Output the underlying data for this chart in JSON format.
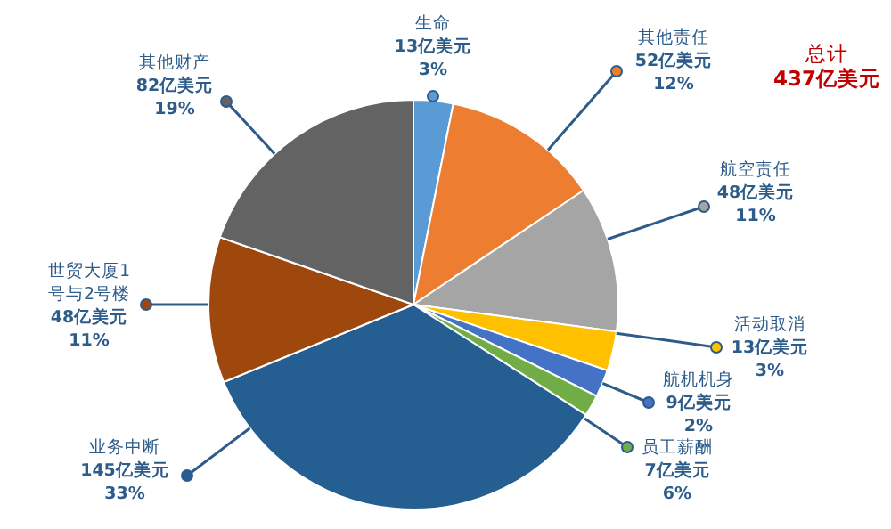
{
  "chart_data": {
    "type": "pie",
    "categories": [
      "生命",
      "其他责任",
      "航空责任",
      "活动取消",
      "航机机身",
      "员工薪酬",
      "业务中断",
      "世贸大厦1号与2号楼",
      "其他财产"
    ],
    "values": [
      13,
      52,
      48,
      13,
      9,
      7,
      145,
      48,
      82
    ],
    "colors": [
      "#5b9bd5",
      "#ed7d31",
      "#a5a5a5",
      "#ffc000",
      "#4472c4",
      "#70ad47",
      "#255e91",
      "#9e480e",
      "#636363"
    ],
    "value_labels": [
      "13亿美元\n3%",
      "52亿美元\n12%",
      "48亿美元\n11%",
      "13亿美元\n3%",
      "9亿美元\n2%",
      "7亿美元\n6%",
      "145亿美元\n33%",
      "48亿美元\n11%",
      "82亿美元\n19%"
    ],
    "annotations": [
      "总计",
      "437亿美元"
    ]
  }
}
